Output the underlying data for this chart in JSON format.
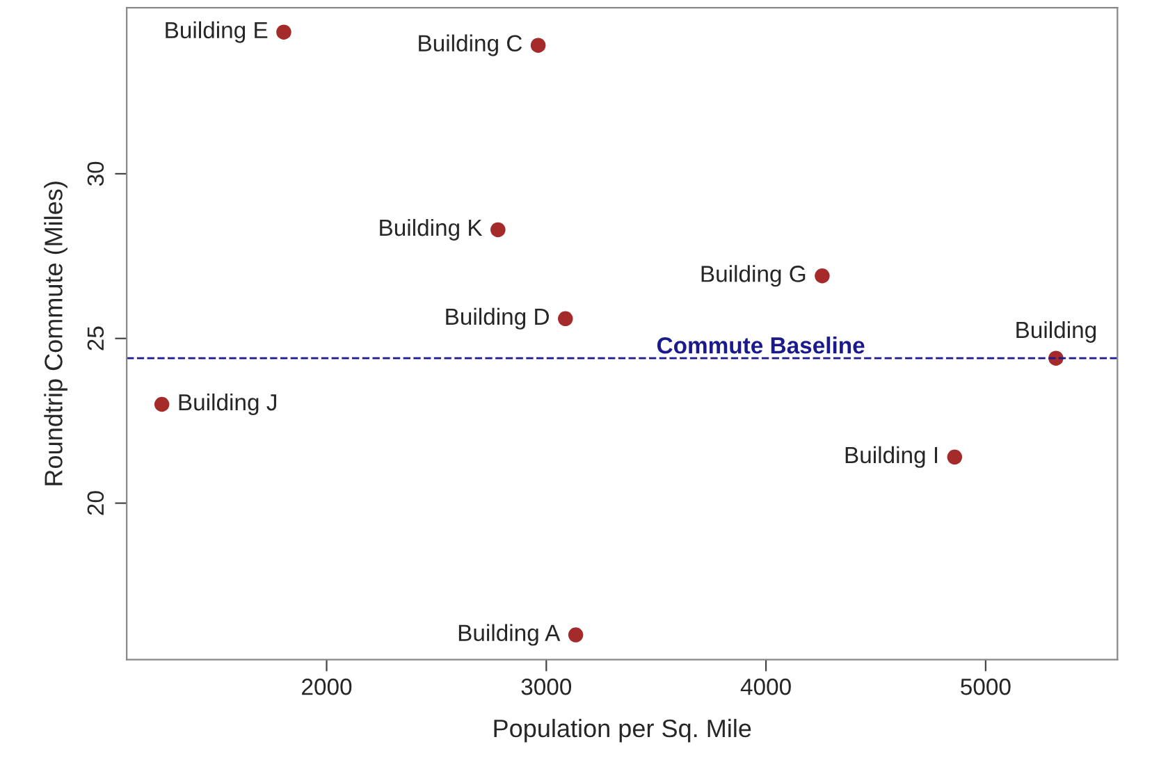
{
  "chart_data": {
    "type": "scatter",
    "xlabel": "Population per Sq. Mile",
    "ylabel": "Roundtrip Commute (Miles)",
    "x": [
      1805,
      2963,
      2780,
      4256,
      3087,
      5320,
      1250,
      4859,
      3134
    ],
    "series": [
      {
        "color": "#a52a2a",
        "values": [
          34.3,
          33.9,
          28.3,
          26.9,
          25.6,
          24.4,
          23.0,
          21.4,
          16.0
        ]
      }
    ],
    "annotations": [
      {
        "text": "Building E",
        "x": 1805,
        "y": 34.3
      },
      {
        "text": "Building C",
        "x": 2963,
        "y": 33.9
      },
      {
        "text": "Building K",
        "x": 2780,
        "y": 28.3
      },
      {
        "text": "Building G",
        "x": 4256,
        "y": 26.9
      },
      {
        "text": "Building D",
        "x": 3087,
        "y": 25.6
      },
      {
        "text": "Building",
        "x": 5320,
        "y": 24.4
      },
      {
        "text": "Building J",
        "x": 1250,
        "y": 23.0
      },
      {
        "text": "Building I",
        "x": 4859,
        "y": 21.4
      },
      {
        "text": "Building A",
        "x": 3134,
        "y": 16.0
      }
    ],
    "ref_lines": [
      {
        "axis": "y",
        "value": 24.4,
        "label": "Commute Baseline",
        "color": "#1a1a8c",
        "line_style": "dashed"
      }
    ],
    "xlim": [
      1090,
      5600
    ],
    "ylim": [
      15.25,
      35.04
    ],
    "xticks": [
      2000,
      3000,
      4000,
      5000
    ],
    "yticks": [
      20,
      25,
      30
    ],
    "grid": false,
    "legend": false,
    "marker": "circle"
  }
}
